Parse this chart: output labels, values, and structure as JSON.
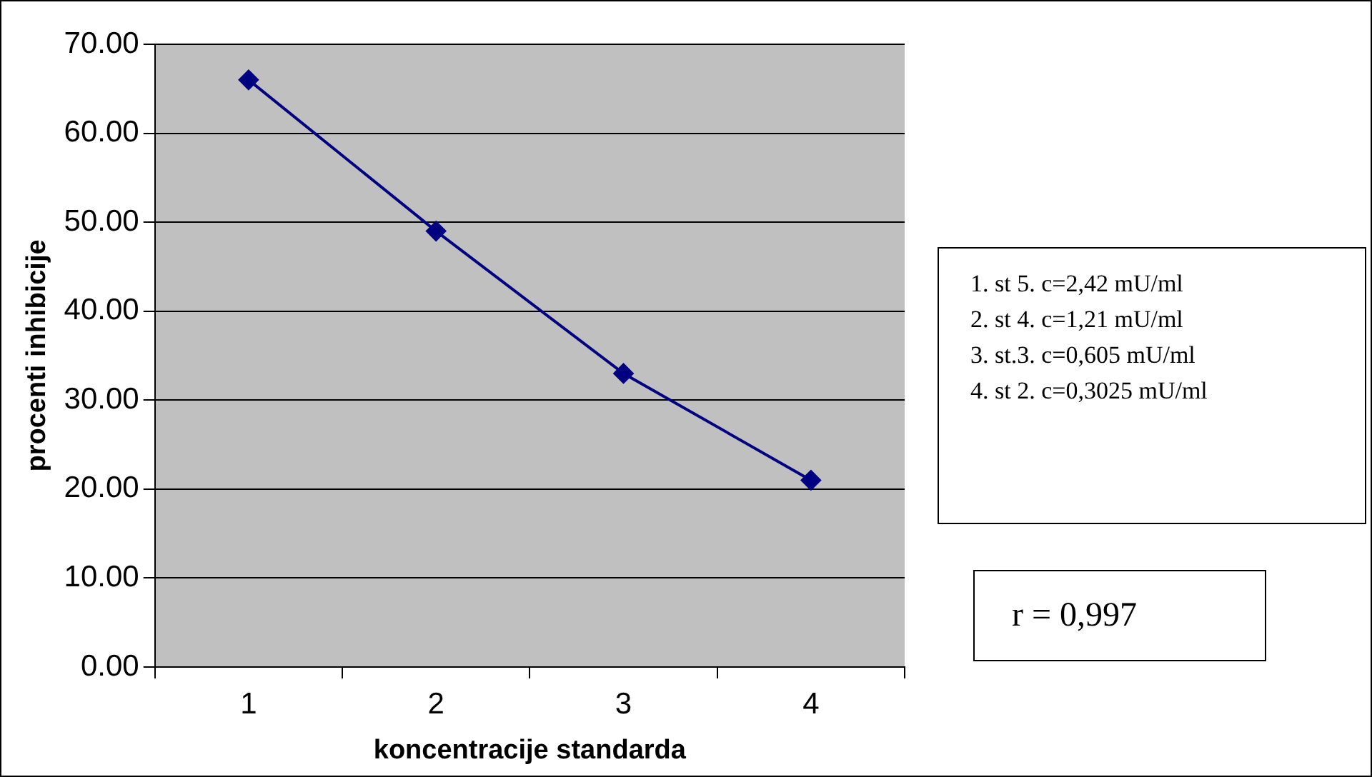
{
  "chart_data": {
    "type": "line",
    "xlabel": "koncentracije standarda",
    "ylabel": "procenti inhibicije",
    "categories": [
      "1",
      "2",
      "3",
      "4"
    ],
    "series": [
      {
        "color": "#000080",
        "values": [
          66,
          49,
          33,
          21
        ]
      }
    ],
    "ylim": [
      0,
      70
    ],
    "yticks": [
      {
        "value": 0,
        "label": "0.00"
      },
      {
        "value": 10,
        "label": "10.00"
      },
      {
        "value": 20,
        "label": "20.00"
      },
      {
        "value": 30,
        "label": "30.00"
      },
      {
        "value": 40,
        "label": "40.00"
      },
      {
        "value": 50,
        "label": "50.00"
      },
      {
        "value": 60,
        "label": "60.00"
      },
      {
        "value": 70,
        "label": "70.00"
      }
    ],
    "grid": "y",
    "legend": false,
    "marker": "diamond",
    "line_style": "solid",
    "annotations": [
      "1. st 5. c=2,42 mU/ml",
      "2. st 4. c=1,21 mU/ml",
      "3. st.3. c=0,605 mU/ml",
      "4. st 2. c=0,3025 mU/ml",
      "r = 0,997"
    ]
  }
}
